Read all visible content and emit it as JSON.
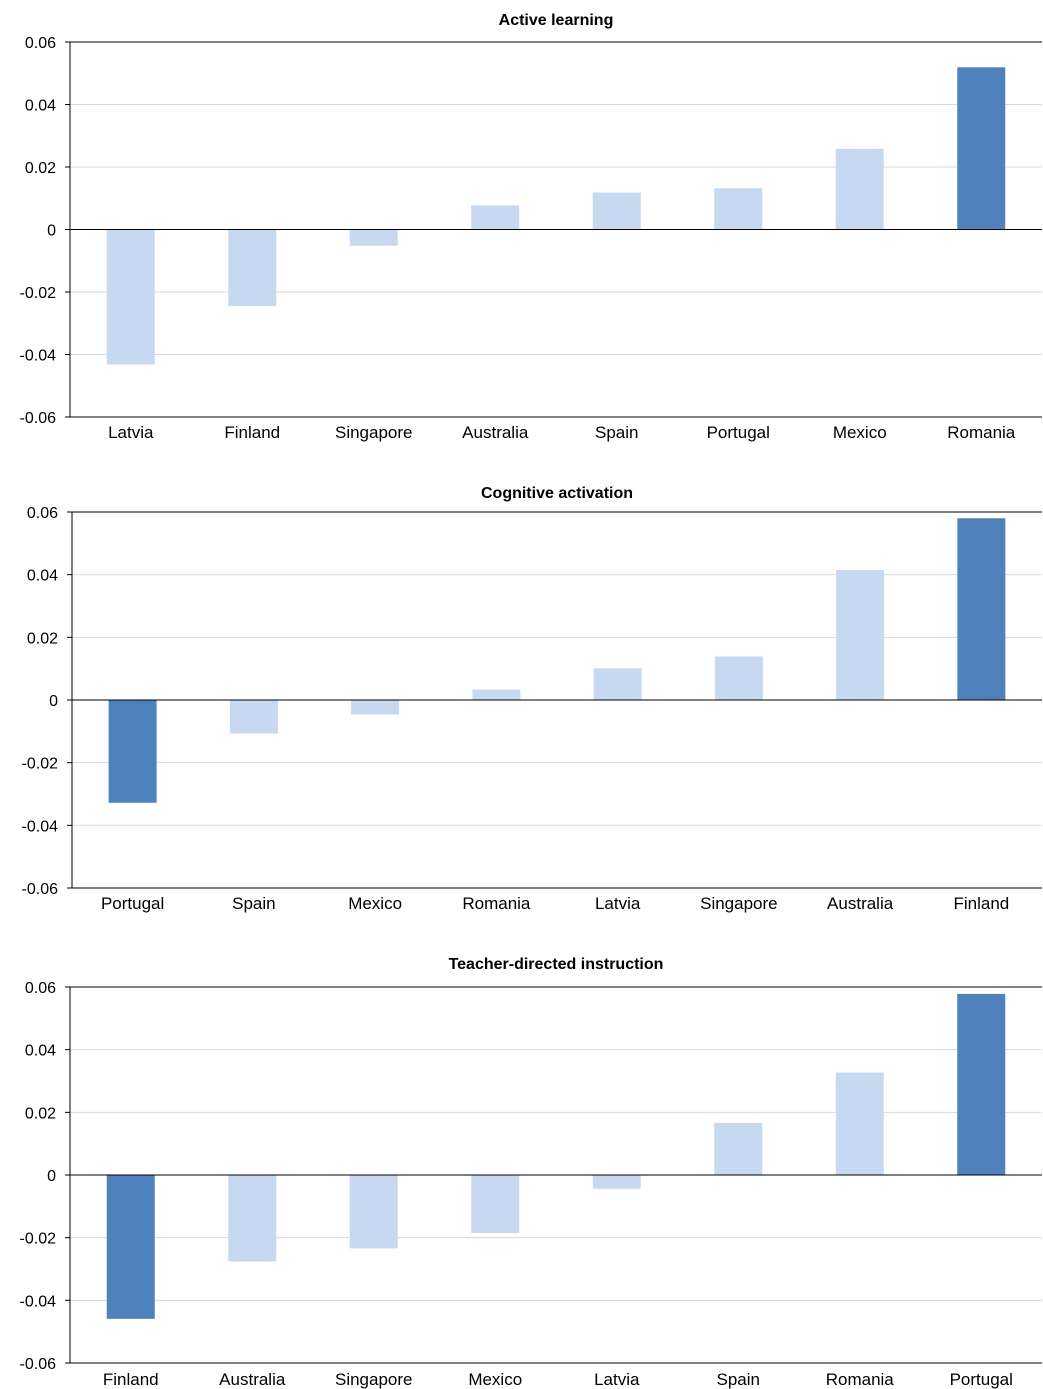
{
  "colors": {
    "highlight": "#4f81bd",
    "normal": "#c6d9f1",
    "grid": "#d9d9d9",
    "axis": "#000000"
  },
  "chart_data": [
    {
      "type": "bar",
      "title": "Active learning",
      "xlabel": "",
      "ylabel": "",
      "ylim": [
        -0.06,
        0.06
      ],
      "yticks": [
        "0.06",
        "0.04",
        "0.02",
        "0",
        "-0.02",
        "-0.04",
        "-0.06"
      ],
      "grid": true,
      "categories": [
        "Latvia",
        "Finland",
        "Singapore",
        "Australia",
        "Spain",
        "Portugal",
        "Mexico",
        "Romania"
      ],
      "values": [
        -0.0432,
        -0.0245,
        -0.0052,
        0.0077,
        0.0118,
        0.0132,
        0.0258,
        0.0519
      ],
      "highlighted": [
        "Romania"
      ]
    },
    {
      "type": "bar",
      "title": "Cognitive activation",
      "xlabel": "",
      "ylabel": "",
      "ylim": [
        -0.06,
        0.06
      ],
      "yticks": [
        "0.06",
        "0.04",
        "0.02",
        "0",
        "-0.02",
        "-0.04",
        "-0.06"
      ],
      "grid": true,
      "categories": [
        "Portugal",
        "Spain",
        "Mexico",
        "Romania",
        "Latvia",
        "Singapore",
        "Australia",
        "Finland"
      ],
      "values": [
        -0.0328,
        -0.0107,
        -0.0046,
        0.0033,
        0.0101,
        0.0139,
        0.0415,
        0.058
      ],
      "highlighted": [
        "Portugal",
        "Finland"
      ]
    },
    {
      "type": "bar",
      "title": "Teacher-directed instruction",
      "xlabel": "",
      "ylabel": "",
      "ylim": [
        -0.06,
        0.06
      ],
      "yticks": [
        "0.06",
        "0.04",
        "0.02",
        "0",
        "-0.02",
        "-0.04",
        "-0.06"
      ],
      "grid": true,
      "categories": [
        "Finland",
        "Australia",
        "Singapore",
        "Mexico",
        "Latvia",
        "Spain",
        "Romania",
        "Portugal"
      ],
      "values": [
        -0.0459,
        -0.0276,
        -0.0234,
        -0.0185,
        -0.0044,
        0.0166,
        0.0327,
        0.0578
      ],
      "highlighted": [
        "Finland",
        "Portugal"
      ]
    }
  ]
}
